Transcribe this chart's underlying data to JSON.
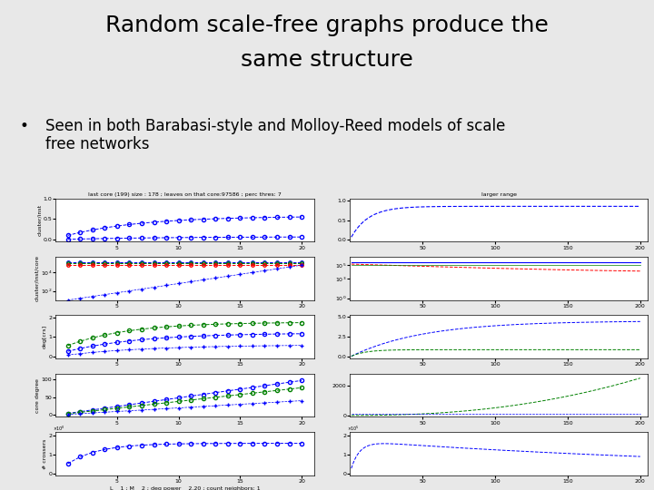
{
  "title_line1": "Random scale-free graphs produce the",
  "title_line2": "same structure",
  "bullet": "Seen in both Barabasi-style and Molloy-Reed models of scale\nfree networks",
  "left_title": "last core (199) size : 178 ; leaves on that core:97586 ; perc thres: 7",
  "right_title": "larger range",
  "xlabel_left": "L    1 ; M    2 ; deg power    2.20 ; count neighbors: 1",
  "bg_color": "#e8e8e8",
  "title_fontsize": 18,
  "bullet_fontsize": 12,
  "subplot_title_fontsize": 4.5,
  "ylabel_fontsize": 4.5,
  "tick_fontsize": 4.5
}
